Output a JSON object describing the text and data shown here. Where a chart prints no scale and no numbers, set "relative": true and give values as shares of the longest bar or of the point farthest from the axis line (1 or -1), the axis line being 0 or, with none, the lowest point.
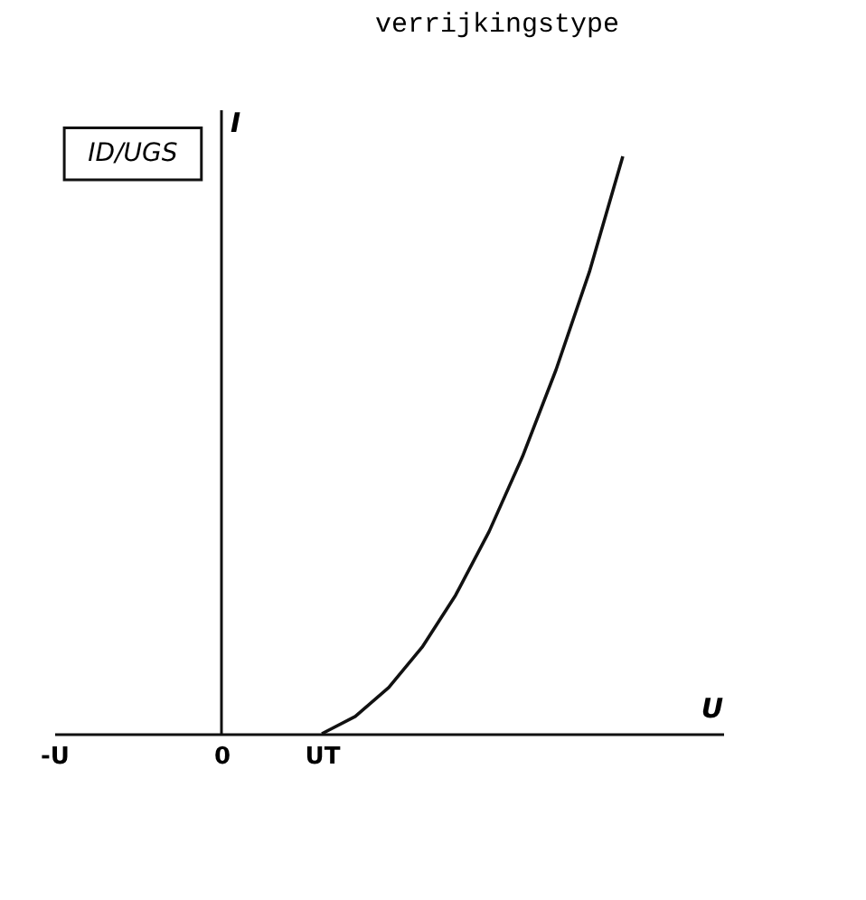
{
  "chart_data": {
    "type": "line",
    "title": "verrijkingstype",
    "xlabel": "U",
    "ylabel": "I",
    "relative": true,
    "annotations": [
      "ID/UGS"
    ],
    "categories": [
      "-U",
      null,
      null,
      null,
      null,
      "0",
      null,
      null,
      "UT",
      null,
      null,
      null,
      null,
      null,
      null,
      null,
      null,
      null,
      null,
      null,
      null
    ],
    "series": [
      {
        "color": "#111111",
        "values": [
          null,
          null,
          null,
          null,
          null,
          null,
          null,
          null,
          0,
          0.03,
          0.08,
          0.15,
          0.24,
          0.35,
          0.48,
          0.63,
          0.8,
          1.0,
          null,
          null,
          null
        ]
      }
    ],
    "ref_lines": [
      {
        "axis": "x",
        "value": "0"
      }
    ],
    "grid": false,
    "legend": false,
    "marker": "none",
    "line_style": "solid"
  }
}
